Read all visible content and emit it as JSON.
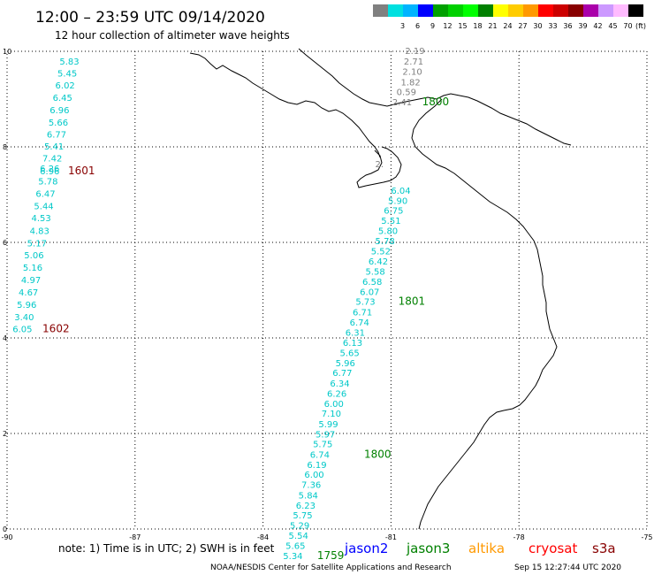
{
  "header": {
    "title": "12:00 – 23:59 UTC 09/14/2020",
    "subtitle": "12 hour collection of altimeter wave heights"
  },
  "legend": {
    "unit": "(ft)",
    "bins": [
      {
        "color": "#808080",
        "label": ""
      },
      {
        "color": "#00e0e0",
        "label": "3"
      },
      {
        "color": "#00b4ff",
        "label": "6"
      },
      {
        "color": "#0000ff",
        "label": "9"
      },
      {
        "color": "#00a000",
        "label": "12"
      },
      {
        "color": "#00d000",
        "label": "15"
      },
      {
        "color": "#00ff00",
        "label": "18"
      },
      {
        "color": "#008000",
        "label": "21"
      },
      {
        "color": "#ffff00",
        "label": "24"
      },
      {
        "color": "#ffcc00",
        "label": "27"
      },
      {
        "color": "#ff9900",
        "label": "30"
      },
      {
        "color": "#ff0000",
        "label": "33"
      },
      {
        "color": "#cc0000",
        "label": "36"
      },
      {
        "color": "#880000",
        "label": "39"
      },
      {
        "color": "#aa00aa",
        "label": "42"
      },
      {
        "color": "#cc99ff",
        "label": "45"
      },
      {
        "color": "#ffbbff",
        "label": "70"
      },
      {
        "color": "#000000",
        "label": ""
      }
    ]
  },
  "map": {
    "lon_range": [
      -90,
      -75
    ],
    "lat_range": [
      0,
      10
    ],
    "x_ticks": [
      "-90",
      "-87",
      "-84",
      "-81",
      "-78",
      "-75"
    ],
    "y_ticks": [
      "0",
      "2",
      "4",
      "6",
      "8",
      "10"
    ],
    "grid": true
  },
  "tracks": [
    {
      "color": "#00c8c8",
      "lon": [
        -88.6,
        -88.8,
        -89.0,
        -89.2,
        -89.4,
        -89.6,
        -89.7,
        -89.8,
        -89.9,
        -89.9,
        -89.9,
        -89.9,
        -89.9
      ],
      "lat": [
        9.7,
        9.55,
        9.3,
        9.0,
        8.7,
        8.4,
        8.1,
        7.8,
        7.4,
        7.0,
        6.6,
        6.2,
        5.8
      ],
      "values": [
        "5.83",
        "5.45",
        "6.02",
        "6.45",
        "6.96",
        "5.66",
        "6.77",
        "5.41",
        "7.42",
        "6.26",
        "6.96",
        "5.78",
        "6.47"
      ]
    }
  ],
  "labels": [
    {
      "text": "5.83",
      "lon": -88.77,
      "lat": 9.72,
      "color": "#00c8c8"
    },
    {
      "text": "5.45",
      "lon": -88.82,
      "lat": 9.47,
      "color": "#00c8c8"
    },
    {
      "text": "6.02",
      "lon": -88.87,
      "lat": 9.22,
      "color": "#00c8c8"
    },
    {
      "text": "6.45",
      "lon": -88.93,
      "lat": 8.96,
      "color": "#00c8c8"
    },
    {
      "text": "6.96",
      "lon": -89.0,
      "lat": 8.7,
      "color": "#00c8c8"
    },
    {
      "text": "5.66",
      "lon": -89.03,
      "lat": 8.44,
      "color": "#00c8c8"
    },
    {
      "text": "6.77",
      "lon": -89.07,
      "lat": 8.19,
      "color": "#00c8c8"
    },
    {
      "text": "5.41",
      "lon": -89.13,
      "lat": 7.94,
      "color": "#00c8c8"
    },
    {
      "text": "7.42",
      "lon": -89.17,
      "lat": 7.69,
      "color": "#00c8c8"
    },
    {
      "text": "6.26",
      "lon": -89.23,
      "lat": 7.48,
      "color": "#00c8c8"
    },
    {
      "text": "6.96",
      "lon": -89.23,
      "lat": 7.43,
      "color": "#00c8c8"
    },
    {
      "text": "5.78",
      "lon": -89.27,
      "lat": 7.21,
      "color": "#00c8c8"
    },
    {
      "text": "6.47",
      "lon": -89.33,
      "lat": 6.95,
      "color": "#00c8c8"
    },
    {
      "text": "5.44",
      "lon": -89.37,
      "lat": 6.69,
      "color": "#00c8c8"
    },
    {
      "text": "4.53",
      "lon": -89.43,
      "lat": 6.44,
      "color": "#00c8c8"
    },
    {
      "text": "4.83",
      "lon": -89.47,
      "lat": 6.18,
      "color": "#00c8c8"
    },
    {
      "text": "5.17",
      "lon": -89.53,
      "lat": 5.92,
      "color": "#00c8c8"
    },
    {
      "text": "5.06",
      "lon": -89.6,
      "lat": 5.67,
      "color": "#00c8c8"
    },
    {
      "text": "5.16",
      "lon": -89.63,
      "lat": 5.41,
      "color": "#00c8c8"
    },
    {
      "text": "4.97",
      "lon": -89.67,
      "lat": 5.15,
      "color": "#00c8c8"
    },
    {
      "text": "4.67",
      "lon": -89.73,
      "lat": 4.89,
      "color": "#00c8c8"
    },
    {
      "text": "5.96",
      "lon": -89.77,
      "lat": 4.63,
      "color": "#00c8c8"
    },
    {
      "text": "3.40",
      "lon": -89.83,
      "lat": 4.37,
      "color": "#00c8c8"
    },
    {
      "text": "6.05",
      "lon": -89.87,
      "lat": 4.12,
      "color": "#00c8c8"
    },
    {
      "text": "1601",
      "lon": -88.57,
      "lat": 7.43,
      "color": "#880000",
      "time": true
    },
    {
      "text": "1602",
      "lon": -89.17,
      "lat": 4.12,
      "color": "#880000",
      "time": true
    },
    {
      "text": "2.19",
      "lon": -80.67,
      "lat": 9.94,
      "color": "#808080"
    },
    {
      "text": "2.71",
      "lon": -80.7,
      "lat": 9.72,
      "color": "#808080"
    },
    {
      "text": "2.10",
      "lon": -80.73,
      "lat": 9.51,
      "color": "#808080"
    },
    {
      "text": "1.82",
      "lon": -80.77,
      "lat": 9.29,
      "color": "#808080"
    },
    {
      "text": "0.59",
      "lon": -80.87,
      "lat": 9.08,
      "color": "#808080"
    },
    {
      "text": "2.41",
      "lon": -80.97,
      "lat": 8.87,
      "color": "#808080"
    },
    {
      "text": "1800",
      "lon": -80.27,
      "lat": 8.87,
      "color": "#008000",
      "time": true
    },
    {
      "text": "2.",
      "lon": -81.37,
      "lat": 7.57,
      "color": "#808080"
    },
    {
      "text": "6.04",
      "lon": -81.0,
      "lat": 7.02,
      "color": "#00c8c8"
    },
    {
      "text": "5.90",
      "lon": -81.07,
      "lat": 6.81,
      "color": "#00c8c8"
    },
    {
      "text": "6.75",
      "lon": -81.17,
      "lat": 6.6,
      "color": "#00c8c8"
    },
    {
      "text": "5.51",
      "lon": -81.23,
      "lat": 6.39,
      "color": "#00c8c8"
    },
    {
      "text": "5.80",
      "lon": -81.3,
      "lat": 6.18,
      "color": "#00c8c8"
    },
    {
      "text": "5.78",
      "lon": -81.37,
      "lat": 5.96,
      "color": "#00c8c8"
    },
    {
      "text": "5.52",
      "lon": -81.47,
      "lat": 5.75,
      "color": "#00c8c8"
    },
    {
      "text": "6.42",
      "lon": -81.53,
      "lat": 5.54,
      "color": "#00c8c8"
    },
    {
      "text": "5.58",
      "lon": -81.6,
      "lat": 5.32,
      "color": "#00c8c8"
    },
    {
      "text": "6.58",
      "lon": -81.67,
      "lat": 5.11,
      "color": "#00c8c8"
    },
    {
      "text": "6.07",
      "lon": -81.73,
      "lat": 4.9,
      "color": "#00c8c8"
    },
    {
      "text": "5.73",
      "lon": -81.83,
      "lat": 4.69,
      "color": "#00c8c8"
    },
    {
      "text": "1801",
      "lon": -80.83,
      "lat": 4.69,
      "color": "#008000",
      "time": true
    },
    {
      "text": "6.71",
      "lon": -81.9,
      "lat": 4.47,
      "color": "#00c8c8"
    },
    {
      "text": "6.74",
      "lon": -81.97,
      "lat": 4.26,
      "color": "#00c8c8"
    },
    {
      "text": "6.31",
      "lon": -82.07,
      "lat": 4.05,
      "color": "#00c8c8"
    },
    {
      "text": "6.13",
      "lon": -82.13,
      "lat": 3.83,
      "color": "#00c8c8"
    },
    {
      "text": "5.65",
      "lon": -82.2,
      "lat": 3.62,
      "color": "#00c8c8"
    },
    {
      "text": "5.96",
      "lon": -82.3,
      "lat": 3.41,
      "color": "#00c8c8"
    },
    {
      "text": "6.77",
      "lon": -82.37,
      "lat": 3.2,
      "color": "#00c8c8"
    },
    {
      "text": "6.34",
      "lon": -82.43,
      "lat": 2.98,
      "color": "#00c8c8"
    },
    {
      "text": "6.26",
      "lon": -82.5,
      "lat": 2.77,
      "color": "#00c8c8"
    },
    {
      "text": "6.00",
      "lon": -82.57,
      "lat": 2.56,
      "color": "#00c8c8"
    },
    {
      "text": "7.10",
      "lon": -82.63,
      "lat": 2.35,
      "color": "#00c8c8"
    },
    {
      "text": "5.99",
      "lon": -82.7,
      "lat": 2.13,
      "color": "#00c8c8"
    },
    {
      "text": "5.97",
      "lon": -82.77,
      "lat": 1.92,
      "color": "#00c8c8"
    },
    {
      "text": "5.75",
      "lon": -82.83,
      "lat": 1.71,
      "color": "#00c8c8"
    },
    {
      "text": "6.74",
      "lon": -82.9,
      "lat": 1.49,
      "color": "#00c8c8"
    },
    {
      "text": "1800",
      "lon": -81.63,
      "lat": 1.49,
      "color": "#008000",
      "time": true
    },
    {
      "text": "6.19",
      "lon": -82.97,
      "lat": 1.28,
      "color": "#00c8c8"
    },
    {
      "text": "6.00",
      "lon": -83.03,
      "lat": 1.07,
      "color": "#00c8c8"
    },
    {
      "text": "7.36",
      "lon": -83.1,
      "lat": 0.86,
      "color": "#00c8c8"
    },
    {
      "text": "5.84",
      "lon": -83.17,
      "lat": 0.64,
      "color": "#00c8c8"
    },
    {
      "text": "6.23",
      "lon": -83.23,
      "lat": 0.43,
      "color": "#00c8c8"
    },
    {
      "text": "5.75",
      "lon": -83.3,
      "lat": 0.22,
      "color": "#00c8c8"
    },
    {
      "text": "5.29",
      "lon": -83.37,
      "lat": 0.01,
      "color": "#00c8c8"
    },
    {
      "text": "5.54",
      "lon": -83.4,
      "lat": -0.2,
      "color": "#00c8c8"
    },
    {
      "text": "5.65",
      "lon": -83.47,
      "lat": -0.42,
      "color": "#00c8c8"
    },
    {
      "text": "5.34",
      "lon": -83.53,
      "lat": -0.63,
      "color": "#00c8c8"
    },
    {
      "text": "1759",
      "lon": -82.73,
      "lat": -0.63,
      "color": "#008000",
      "time": true
    }
  ],
  "footer": {
    "note": "note: 1) Time is in UTC; 2) SWH is in feet",
    "satellites": [
      {
        "name": "jason2",
        "color": "#0000ff"
      },
      {
        "name": "jason3",
        "color": "#008000"
      },
      {
        "name": "altika",
        "color": "#ff9900"
      },
      {
        "name": "cryosat",
        "color": "#ff0000"
      },
      {
        "name": "s3a",
        "color": "#880000"
      }
    ],
    "credit": "NOAA/NESDIS Center for Satellite Applications and Research",
    "timestamp": "Sep 15 12:27:44 UTC 2020"
  }
}
